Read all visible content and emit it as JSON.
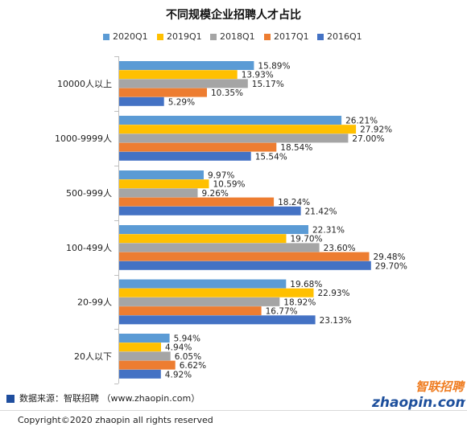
{
  "chart_data": {
    "type": "bar",
    "orientation": "horizontal",
    "title": "不同规模企业招聘人才占比",
    "categories": [
      "10000人以上",
      "1000-9999人",
      "500-999人",
      "100-499人",
      "20-99人",
      "20人以下"
    ],
    "series": [
      {
        "name": "2020Q1",
        "color": "#5b9bd5",
        "values": [
          15.89,
          26.21,
          9.97,
          22.31,
          19.68,
          5.94
        ]
      },
      {
        "name": "2019Q1",
        "color": "#ffc000",
        "values": [
          13.93,
          27.92,
          10.59,
          19.7,
          22.93,
          4.94
        ]
      },
      {
        "name": "2018Q1",
        "color": "#a5a5a5",
        "values": [
          15.17,
          27.0,
          9.26,
          23.6,
          18.92,
          6.05
        ]
      },
      {
        "name": "2017Q1",
        "color": "#ed7d31",
        "values": [
          10.35,
          18.54,
          18.24,
          29.48,
          16.77,
          6.62
        ]
      },
      {
        "name": "2016Q1",
        "color": "#4472c4",
        "values": [
          5.29,
          15.54,
          21.42,
          29.7,
          23.13,
          4.92
        ]
      }
    ],
    "value_format": "percent_2dp",
    "xlim": [
      0,
      30
    ],
    "grid": false,
    "legend_position": "top"
  },
  "footer": {
    "source": "数据来源：智联招聘 （www.zhaopin.com）",
    "copyright": "Copyright©2020 zhaopin all rights reserved",
    "logo_cn": "智联招聘",
    "logo_en": "zhaopin.com"
  },
  "colors": {
    "source_marker": "#1f4e9e",
    "logo_orange": "#ef7d22",
    "logo_blue": "#1d4f9c"
  }
}
